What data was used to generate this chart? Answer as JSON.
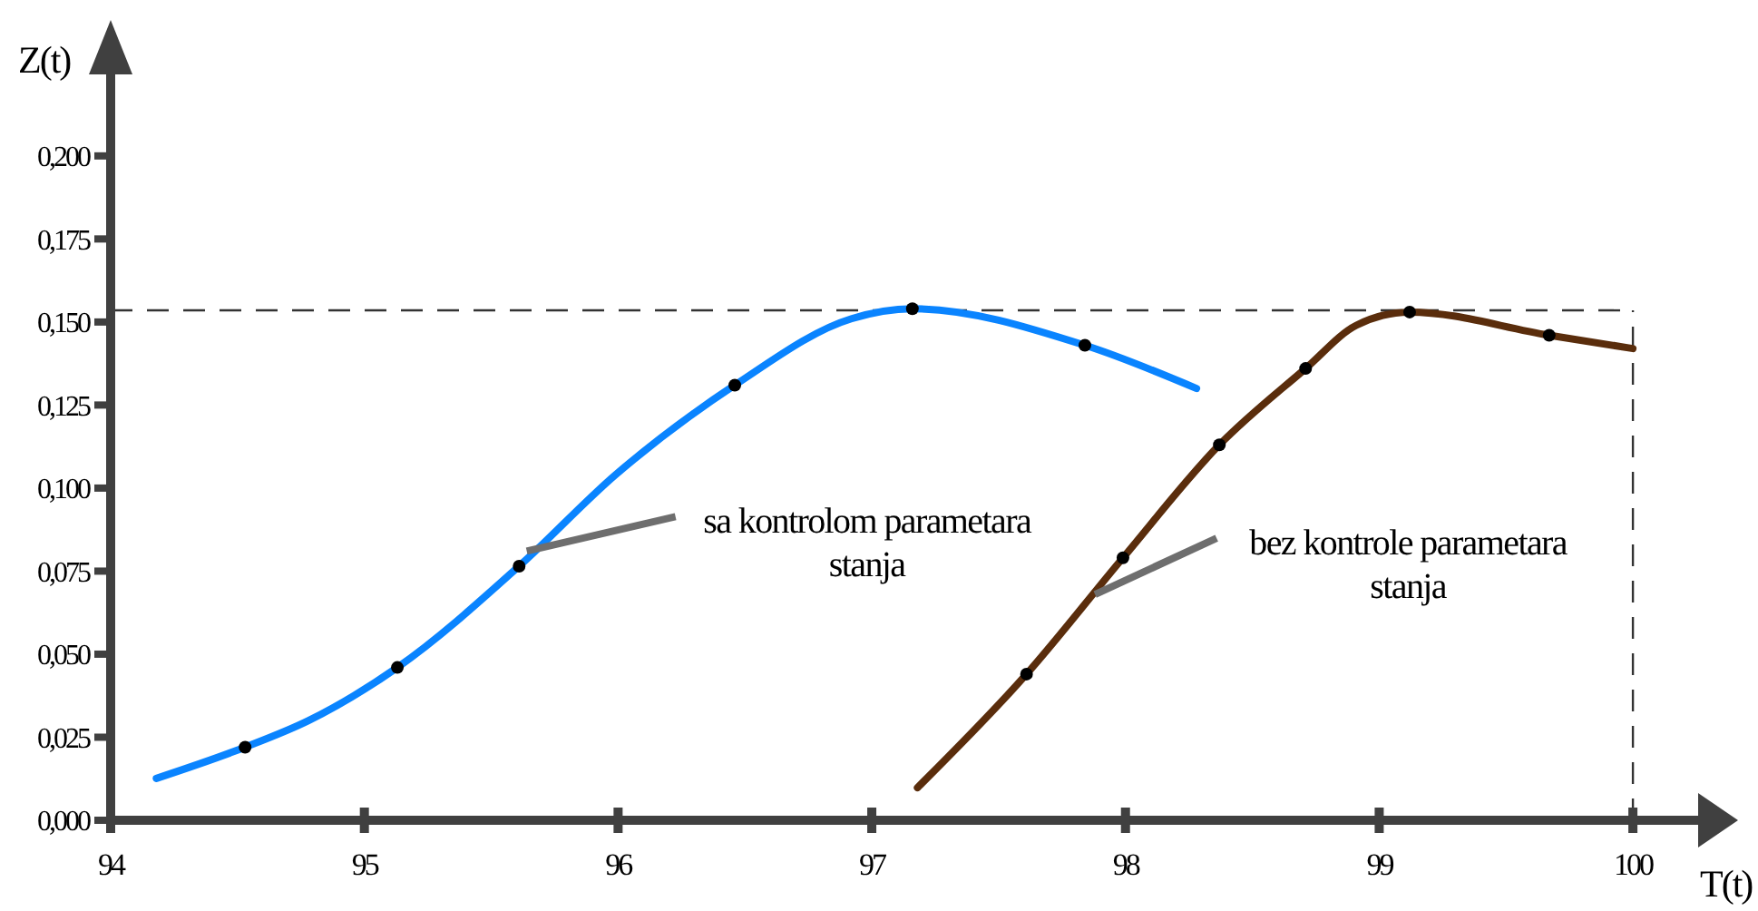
{
  "chart_data": {
    "type": "line",
    "xlabel": "T(t)",
    "ylabel": "Z(t)",
    "xlim": [
      94,
      100.3
    ],
    "ylim": [
      0,
      0.23
    ],
    "xticks": [
      94,
      95,
      96,
      97,
      98,
      99,
      100
    ],
    "yticks": [
      {
        "value": 0,
        "label": "0,000"
      },
      {
        "value": 0.025,
        "label": "0,025"
      },
      {
        "value": 0.05,
        "label": "0,050"
      },
      {
        "value": 0.075,
        "label": "0,075"
      },
      {
        "value": 0.1,
        "label": "0,100"
      },
      {
        "value": 0.125,
        "label": "0,125"
      },
      {
        "value": 0.15,
        "label": "0,150"
      },
      {
        "value": 0.175,
        "label": "0,175"
      },
      {
        "value": 0.2,
        "label": "0,200"
      }
    ],
    "grid": false,
    "line_style": "solid",
    "marker": "none",
    "series": [
      {
        "color": "#0a84ff",
        "x": [
          94.18,
          94.53,
          94.78,
          95.13,
          95.61,
          95.99,
          96.46,
          96.92,
          97.16,
          97.84,
          98.28
        ],
        "values": [
          0.0126,
          0.022,
          0.03,
          0.046,
          0.0765,
          0.104,
          0.131,
          0.151,
          0.154,
          0.143,
          0.13
        ]
      },
      {
        "color": "#5a2d0c",
        "x": [
          97.18,
          97.61,
          97.99,
          98.37,
          98.71,
          98.91,
          99.12,
          99.67,
          100.0
        ],
        "values": [
          0.0098,
          0.044,
          0.079,
          0.113,
          0.136,
          0.149,
          0.153,
          0.146,
          0.142
        ]
      },
      {
        "type": "scatter",
        "color": "#000000",
        "marker": "circle",
        "x": [
          94.53,
          95.13,
          95.61,
          96.46,
          97.16,
          97.84
        ],
        "values": [
          0.022,
          0.046,
          0.0765,
          0.131,
          0.154,
          0.143
        ]
      },
      {
        "type": "scatter",
        "color": "#000000",
        "marker": "circle",
        "x": [
          97.61,
          97.99,
          98.37,
          98.71,
          99.12,
          99.67
        ],
        "values": [
          0.044,
          0.079,
          0.113,
          0.136,
          0.153,
          0.146
        ]
      }
    ],
    "ref_lines": [
      {
        "axis": "y",
        "value": 0.1535,
        "color": "#333333",
        "line_style": "dashed"
      },
      {
        "axis": "x",
        "value": 100,
        "color": "#333333",
        "line_style": "dashed"
      }
    ],
    "annotations": [
      {
        "text": "sa kontrolom parametara stanja",
        "x": 95.64,
        "y": 0.081
      },
      {
        "text": "bez kontrole parametara stanja",
        "x": 97.88,
        "y": 0.068
      }
    ]
  }
}
